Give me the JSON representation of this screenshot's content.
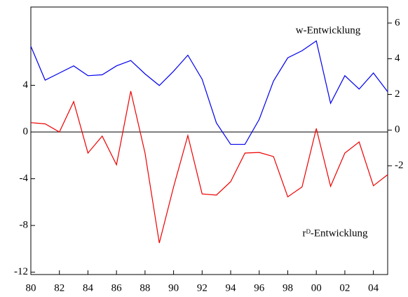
{
  "chart_data": {
    "type": "line",
    "x": [
      1980,
      1981,
      1982,
      1983,
      1984,
      1985,
      1986,
      1987,
      1988,
      1989,
      1990,
      1991,
      1992,
      1993,
      1994,
      1995,
      1996,
      1997,
      1998,
      1999,
      2000,
      2001,
      2002,
      2003,
      2004,
      2005
    ],
    "series": [
      {
        "name": "w-Entwicklung",
        "color": "#0000ee",
        "axis": "y2",
        "values": [
          4.7,
          2.8,
          3.2,
          3.6,
          3.05,
          3.1,
          3.6,
          3.9,
          3.15,
          2.5,
          3.3,
          4.2,
          2.85,
          0.4,
          -0.8,
          -0.8,
          0.6,
          2.75,
          4.05,
          4.45,
          5.0,
          1.5,
          3.05,
          2.3,
          3.2,
          2.15
        ]
      },
      {
        "name": "rᴰ-Entwicklung",
        "color": "#ee0000",
        "values": [
          0.8,
          0.7,
          0,
          2.6,
          -1.8,
          -0.35,
          -2.8,
          3.5,
          -1.8,
          -9.5,
          -4.7,
          -0.3,
          -5.3,
          -5.4,
          -4.25,
          -1.8,
          -1.75,
          -2.1,
          -5.55,
          -4.7,
          0.3,
          -4.65,
          -1.8,
          -0.85,
          -4.6,
          -3.65
        ]
      }
    ],
    "xlim": [
      1980,
      2005
    ],
    "xticks": [
      {
        "value": 1980,
        "label": "80"
      },
      {
        "value": 1982,
        "label": "82"
      },
      {
        "value": 1984,
        "label": "84"
      },
      {
        "value": 1986,
        "label": "86"
      },
      {
        "value": 1988,
        "label": "88"
      },
      {
        "value": 1990,
        "label": "90"
      },
      {
        "value": 1992,
        "label": "92"
      },
      {
        "value": 1994,
        "label": "94"
      },
      {
        "value": 1996,
        "label": "96"
      },
      {
        "value": 1998,
        "label": "98"
      },
      {
        "value": 2000,
        "label": "00"
      },
      {
        "value": 2002,
        "label": "02"
      },
      {
        "value": 2004,
        "label": "04"
      }
    ],
    "ylim": [
      -12.2,
      10.7
    ],
    "yticks": [
      -12,
      -8,
      -4,
      0,
      4
    ],
    "y2lim": [
      -8.1,
      6.9
    ],
    "y2ticks": [
      -2,
      0,
      2,
      4,
      6
    ],
    "hline": 0
  }
}
